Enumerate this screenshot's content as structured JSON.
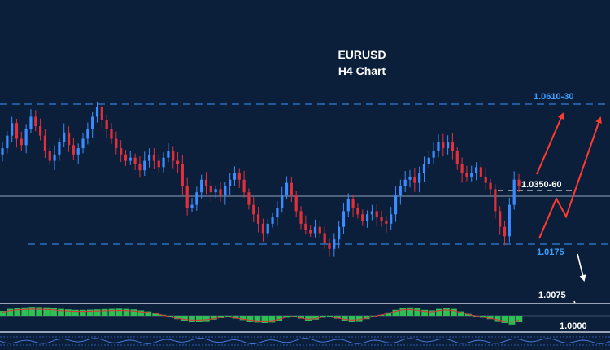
{
  "chart_data": {
    "type": "candlestick",
    "title": "EURUSD",
    "subtitle": "H4 Chart",
    "levels": [
      {
        "label": "1.0610-30",
        "value": 1.062,
        "role": "resistance",
        "style": "dashed",
        "color": "#2f7fd8",
        "text_color": "#3aa0ff"
      },
      {
        "label": "1.0350-60",
        "value": 1.0355,
        "role": "pivot",
        "style": "solid",
        "color": "#8fa3bf",
        "text_color": "#ffffff"
      },
      {
        "label": "1.0175",
        "value": 1.0175,
        "role": "support",
        "style": "dashed",
        "color": "#2f7fd8",
        "text_color": "#3aa0ff"
      },
      {
        "label": "1.0075",
        "value": 1.0075,
        "role": "target",
        "style": "none",
        "text_color": "#ffffff"
      },
      {
        "label": "1.0000",
        "value": 1.0,
        "role": "target",
        "style": "none",
        "text_color": "#ffffff"
      }
    ],
    "close_series": [
      1.048,
      1.052,
      1.056,
      1.051,
      1.049,
      1.054,
      1.058,
      1.055,
      1.052,
      1.047,
      1.044,
      1.046,
      1.05,
      1.053,
      1.049,
      1.046,
      1.048,
      1.051,
      1.054,
      1.058,
      1.061,
      1.057,
      1.054,
      1.051,
      1.048,
      1.046,
      1.044,
      1.045,
      1.043,
      1.041,
      1.044,
      1.046,
      1.044,
      1.042,
      1.045,
      1.047,
      1.044,
      1.043,
      1.036,
      1.029,
      1.03,
      1.034,
      1.038,
      1.036,
      1.034,
      1.035,
      1.033,
      1.036,
      1.038,
      1.04,
      1.038,
      1.034,
      1.03,
      1.027,
      1.024,
      1.021,
      1.024,
      1.026,
      1.029,
      1.033,
      1.037,
      1.033,
      1.028,
      1.024,
      1.022,
      1.021,
      1.023,
      1.021,
      1.018,
      1.016,
      1.019,
      1.023,
      1.028,
      1.032,
      1.029,
      1.027,
      1.025,
      1.027,
      1.028,
      1.026,
      1.025,
      1.024,
      1.027,
      1.033,
      1.036,
      1.038,
      1.039,
      1.037,
      1.04,
      1.043,
      1.045,
      1.047,
      1.05,
      1.048,
      1.05,
      1.047,
      1.043,
      1.04,
      1.039,
      1.04,
      1.042,
      1.039,
      1.037,
      1.035,
      1.028,
      1.023,
      1.02,
      1.03,
      1.038,
      1.036
    ],
    "palette": {
      "background": "#0c1f3a",
      "bull": "#3b8cff",
      "bear": "#e0303a",
      "oscillator": "#2fbf55",
      "arrow_red": "#ff3b30",
      "arrow_white": "#ffffff"
    },
    "oscillator_series": [
      0.5,
      0.7,
      0.8,
      0.85,
      0.9,
      0.88,
      0.86,
      0.8,
      0.7,
      0.65,
      0.6,
      0.6,
      0.62,
      0.65,
      0.68,
      0.7,
      0.72,
      0.7,
      0.65,
      0.55,
      0.45,
      0.3,
      0.1,
      -0.15,
      -0.35,
      -0.5,
      -0.6,
      -0.6,
      -0.55,
      -0.4,
      -0.25,
      -0.15,
      -0.3,
      -0.45,
      -0.6,
      -0.7,
      -0.75,
      -0.7,
      -0.5,
      -0.2,
      -0.1,
      -0.3,
      -0.5,
      -0.4,
      -0.2,
      -0.15,
      -0.3,
      -0.5,
      -0.6,
      -0.55,
      -0.35,
      -0.1,
      0.1,
      0.35,
      0.6,
      0.8,
      0.85,
      0.75,
      0.6,
      0.55,
      0.7,
      0.8,
      0.7,
      0.45,
      0.2,
      0.0,
      -0.2,
      -0.35,
      -0.55,
      -0.75,
      -0.9,
      -0.6
    ]
  }
}
